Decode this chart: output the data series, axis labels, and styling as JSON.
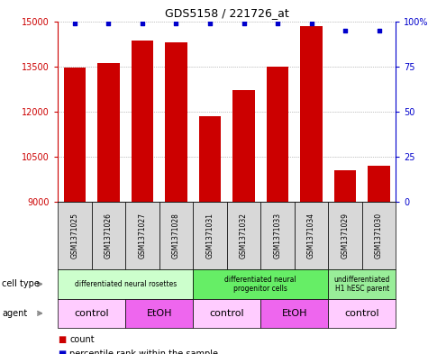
{
  "title": "GDS5158 / 221726_at",
  "samples": [
    "GSM1371025",
    "GSM1371026",
    "GSM1371027",
    "GSM1371028",
    "GSM1371031",
    "GSM1371032",
    "GSM1371033",
    "GSM1371034",
    "GSM1371029",
    "GSM1371030"
  ],
  "counts": [
    13450,
    13600,
    14350,
    14300,
    11850,
    12700,
    13500,
    14850,
    10050,
    10200
  ],
  "percentiles": [
    99,
    99,
    99,
    99,
    99,
    99,
    99,
    99,
    95,
    95
  ],
  "bar_color": "#cc0000",
  "dot_color": "#0000cc",
  "ylim_left": [
    9000,
    15000
  ],
  "ylim_right": [
    0,
    100
  ],
  "yticks_left": [
    9000,
    10500,
    12000,
    13500,
    15000
  ],
  "yticks_right": [
    0,
    25,
    50,
    75,
    100
  ],
  "ytick_labels_right": [
    "0",
    "25",
    "50",
    "75",
    "100%"
  ],
  "cell_type_groups": [
    {
      "label": "differentiated neural rosettes",
      "start": 0,
      "end": 4,
      "color": "#ccffcc"
    },
    {
      "label": "differentiated neural\nprogenitor cells",
      "start": 4,
      "end": 8,
      "color": "#66ee66"
    },
    {
      "label": "undifferentiated\nH1 hESC parent",
      "start": 8,
      "end": 10,
      "color": "#99ee99"
    }
  ],
  "agent_groups": [
    {
      "label": "control",
      "start": 0,
      "end": 2,
      "color": "#ffccff"
    },
    {
      "label": "EtOH",
      "start": 2,
      "end": 4,
      "color": "#ee66ee"
    },
    {
      "label": "control",
      "start": 4,
      "end": 6,
      "color": "#ffccff"
    },
    {
      "label": "EtOH",
      "start": 6,
      "end": 8,
      "color": "#ee66ee"
    },
    {
      "label": "control",
      "start": 8,
      "end": 10,
      "color": "#ffccff"
    }
  ],
  "legend_count_color": "#cc0000",
  "legend_percentile_color": "#0000cc",
  "bg_color": "#ffffff",
  "grid_color": "#888888",
  "row_label_cell_type": "cell type",
  "row_label_agent": "agent",
  "sample_box_color": "#d8d8d8"
}
